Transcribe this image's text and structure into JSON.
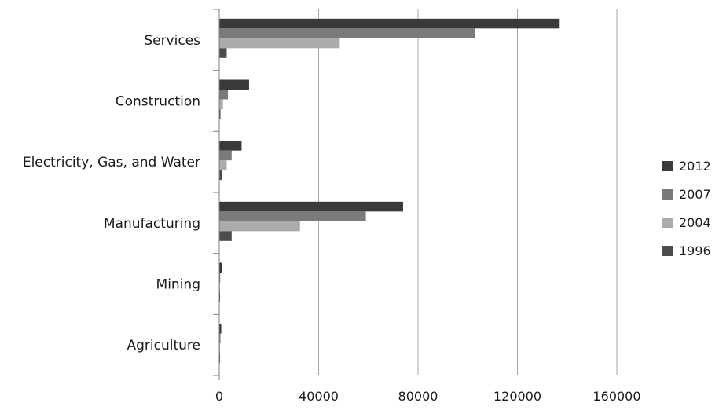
{
  "chart_data": {
    "type": "bar",
    "orientation": "horizontal",
    "categories": [
      "Agriculture",
      "Mining",
      "Manufacturing",
      "Electricity, Gas, and Water",
      "Construction",
      "Services"
    ],
    "series": [
      {
        "name": "2012",
        "color": "#3a3a3a",
        "values": [
          800,
          1200,
          74000,
          9000,
          12000,
          137000
        ]
      },
      {
        "name": "2007",
        "color": "#7a7a7a",
        "values": [
          500,
          400,
          59000,
          5000,
          3500,
          103000
        ]
      },
      {
        "name": "2004",
        "color": "#ababab",
        "values": [
          300,
          300,
          32500,
          3000,
          1500,
          48500
        ]
      },
      {
        "name": "1996",
        "color": "#4d4d4d",
        "values": [
          200,
          200,
          5000,
          1000,
          500,
          3000
        ]
      }
    ],
    "xlim": [
      0,
      160000
    ],
    "xticks": [
      "0",
      "40000",
      "80000",
      "120000",
      "160000"
    ],
    "title": "",
    "xlabel": "",
    "ylabel": "",
    "grid": "vertical",
    "legend_position": "right"
  }
}
